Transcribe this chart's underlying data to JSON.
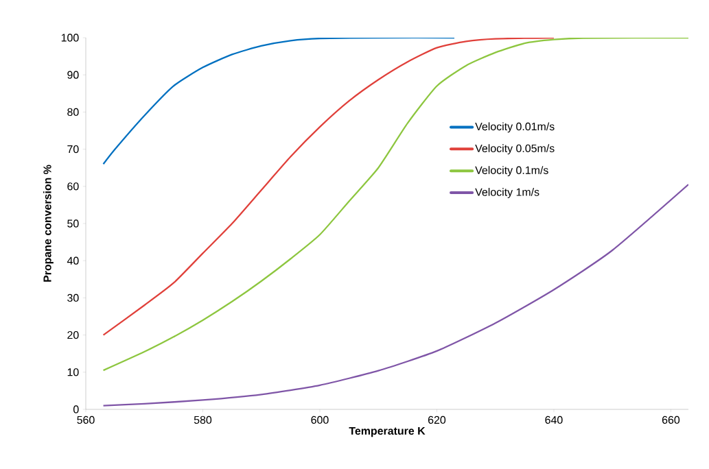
{
  "chart_data": {
    "type": "line",
    "xlabel": "Temperature K",
    "ylabel": "Propane conversion %",
    "xlim": [
      560,
      663
    ],
    "ylim": [
      0,
      100
    ],
    "xticks": [
      560,
      580,
      600,
      620,
      640,
      660
    ],
    "yticks": [
      0,
      10,
      20,
      30,
      40,
      50,
      60,
      70,
      80,
      90,
      100
    ],
    "grid": false,
    "legend": "right",
    "marker": "none",
    "line_style": "solid",
    "series": [
      {
        "name": "Velocity 0.01m/s",
        "color": "#0070c0",
        "x": [
          563,
          565,
          570,
          575,
          580,
          585,
          590,
          595,
          600,
          610,
          623
        ],
        "values": [
          66,
          70,
          79,
          87,
          92,
          95.5,
          97.8,
          99.2,
          99.8,
          100,
          100
        ]
      },
      {
        "name": "Velocity 0.05m/s",
        "color": "#e0403a",
        "x": [
          563,
          570,
          575,
          580,
          585,
          590,
          595,
          600,
          605,
          610,
          615,
          620,
          625,
          630,
          640
        ],
        "values": [
          20,
          28,
          34,
          42,
          50,
          59,
          68,
          76,
          83,
          88.7,
          93.5,
          97.3,
          99,
          99.7,
          100
        ]
      },
      {
        "name": "Velocity 0.1m/s",
        "color": "#8dc63f",
        "x": [
          563,
          570,
          575,
          580,
          585,
          590,
          595,
          600,
          605,
          610,
          615,
          620,
          625,
          630,
          635,
          640,
          645,
          663
        ],
        "values": [
          10.5,
          15.5,
          19.5,
          24,
          29,
          34.5,
          40.5,
          47,
          56,
          65,
          77,
          87,
          92.5,
          96,
          98.5,
          99.5,
          99.9,
          100
        ]
      },
      {
        "name": "Velocity 1m/s",
        "color": "#7f55a7",
        "x": [
          563,
          570,
          580,
          590,
          600,
          610,
          620,
          630,
          640,
          650,
          663
        ],
        "values": [
          1,
          1.5,
          2.5,
          4,
          6.5,
          10.4,
          15.7,
          23.2,
          32.2,
          42.8,
          60.5
        ]
      }
    ]
  }
}
